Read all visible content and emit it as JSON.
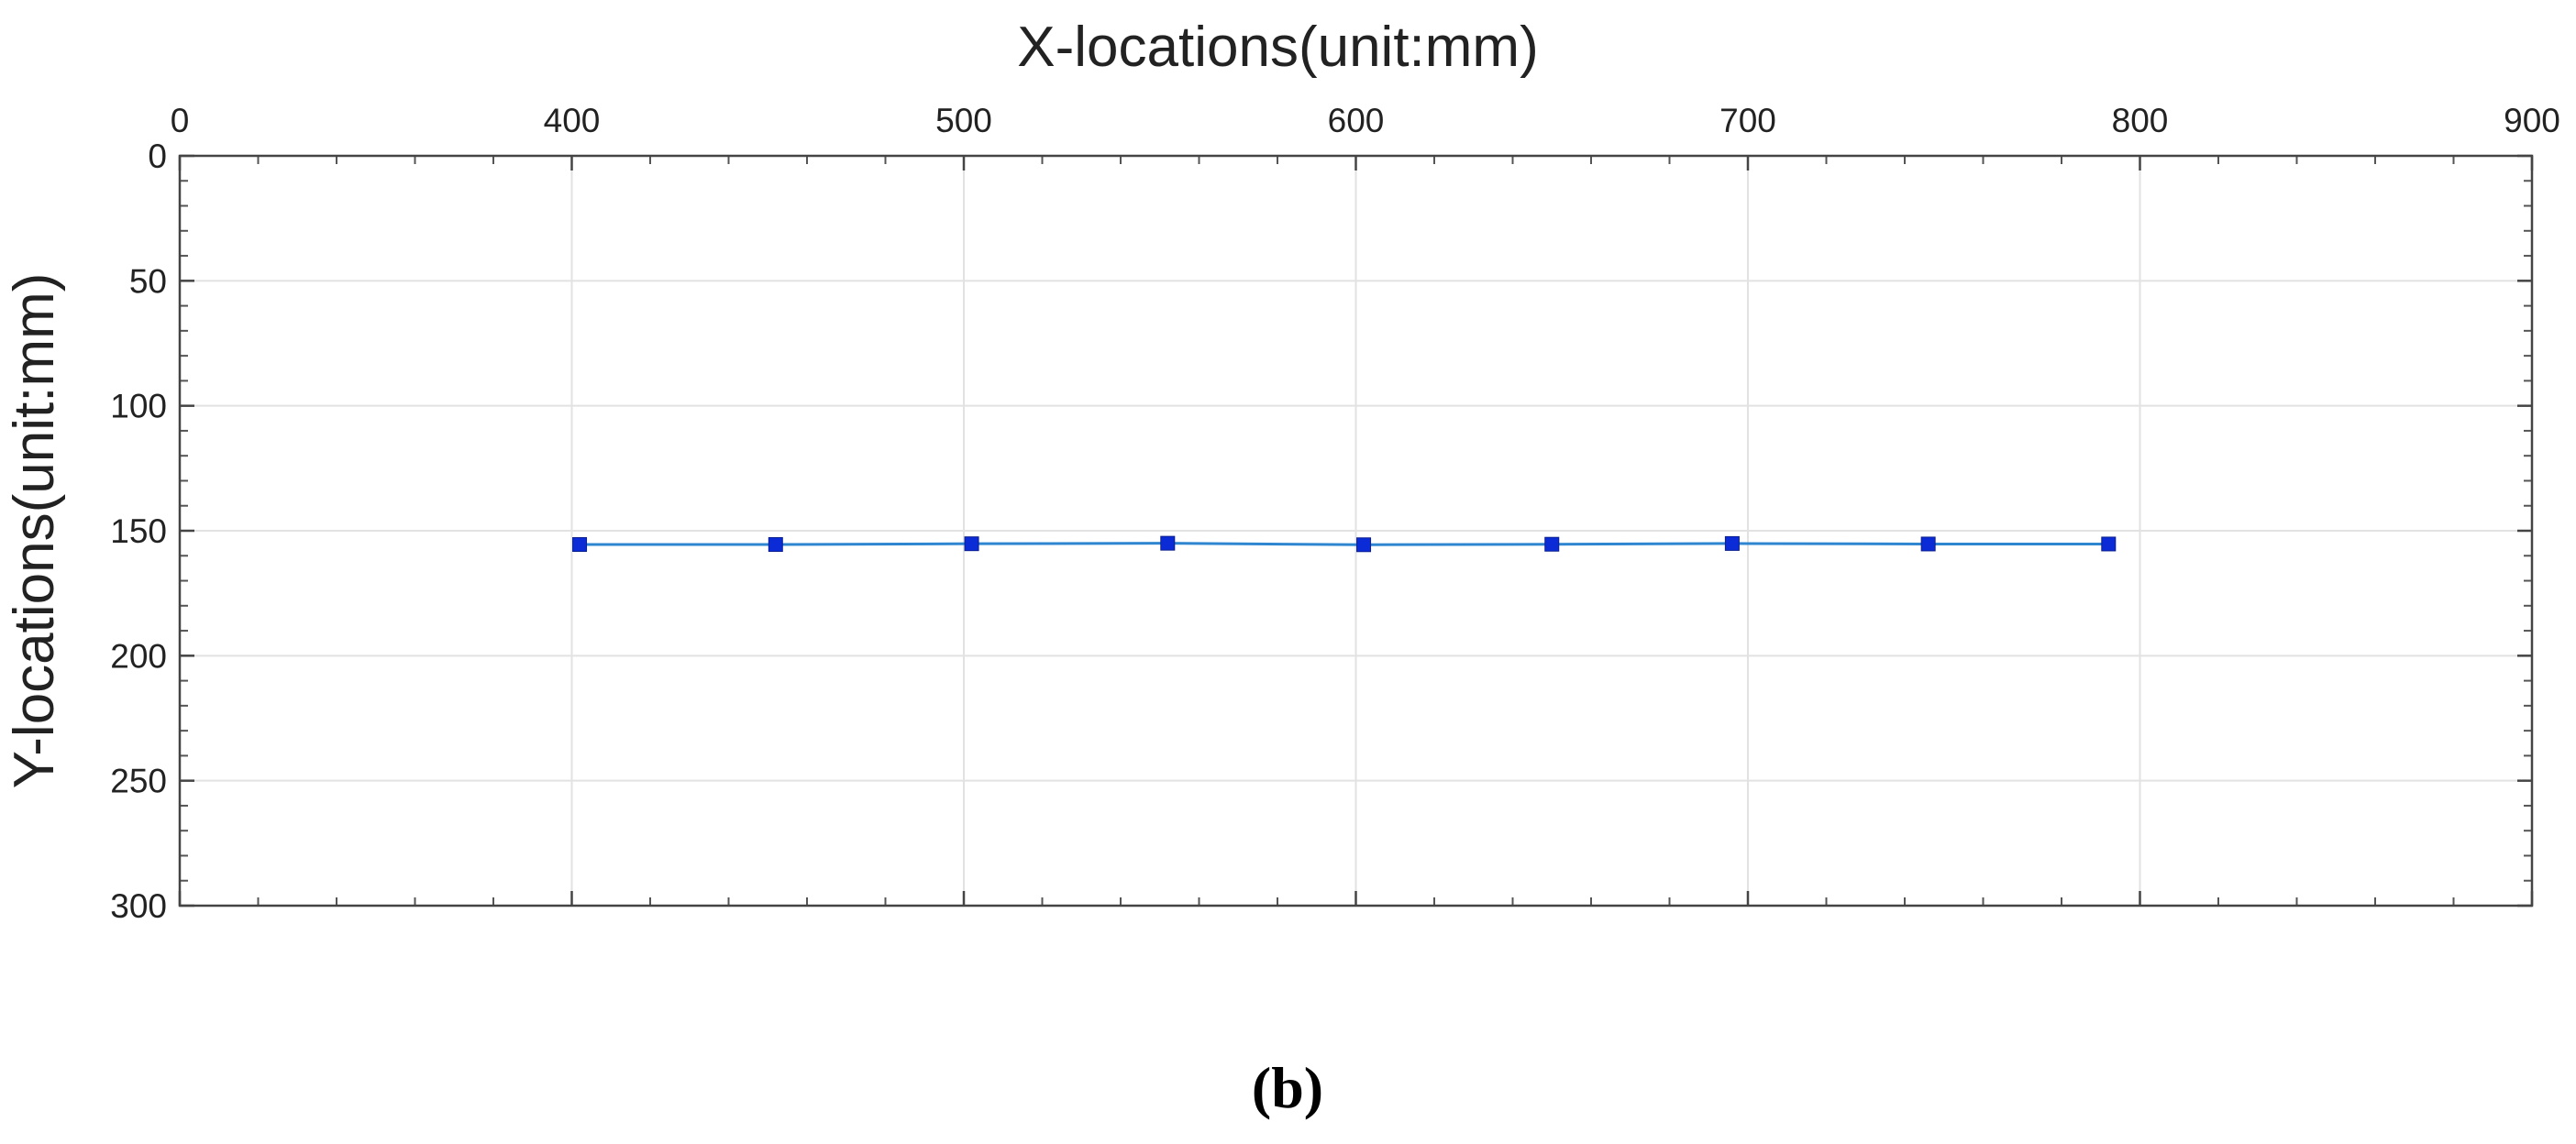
{
  "chart_data": {
    "type": "line",
    "title": "",
    "xlabel": "X-locations(unit:mm)",
    "ylabel": "Y-locations(unit:mm)",
    "x_axis_position": "top",
    "y_axis_reversed": true,
    "xlim": [
      0,
      900
    ],
    "ylim": [
      0,
      300
    ],
    "x_ticks": [
      {
        "value": 0,
        "label": "0"
      },
      {
        "value": 150,
        "label": "400"
      },
      {
        "value": 300,
        "label": "500"
      },
      {
        "value": 450,
        "label": "600"
      },
      {
        "value": 600,
        "label": "700"
      },
      {
        "value": 750,
        "label": "800"
      },
      {
        "value": 900,
        "label": "900"
      }
    ],
    "y_ticks": [
      {
        "value": 0,
        "label": "0"
      },
      {
        "value": 50,
        "label": "50"
      },
      {
        "value": 100,
        "label": "100"
      },
      {
        "value": 150,
        "label": "150"
      },
      {
        "value": 200,
        "label": "200"
      },
      {
        "value": 250,
        "label": "250"
      },
      {
        "value": 300,
        "label": "300"
      }
    ],
    "minor_ticks_per_major": 5,
    "grid": true,
    "box": true,
    "series": [
      {
        "x": [
          402,
          452,
          502,
          552,
          602,
          650,
          696,
          746,
          792
        ],
        "y": [
          155.5,
          155.5,
          155.2,
          155.0,
          155.6,
          155.4,
          155.1,
          155.3,
          155.3
        ],
        "color": "#2e86d1",
        "marker": "square",
        "marker_color": "#0a2bd6"
      }
    ]
  },
  "panel_label": "(b)"
}
